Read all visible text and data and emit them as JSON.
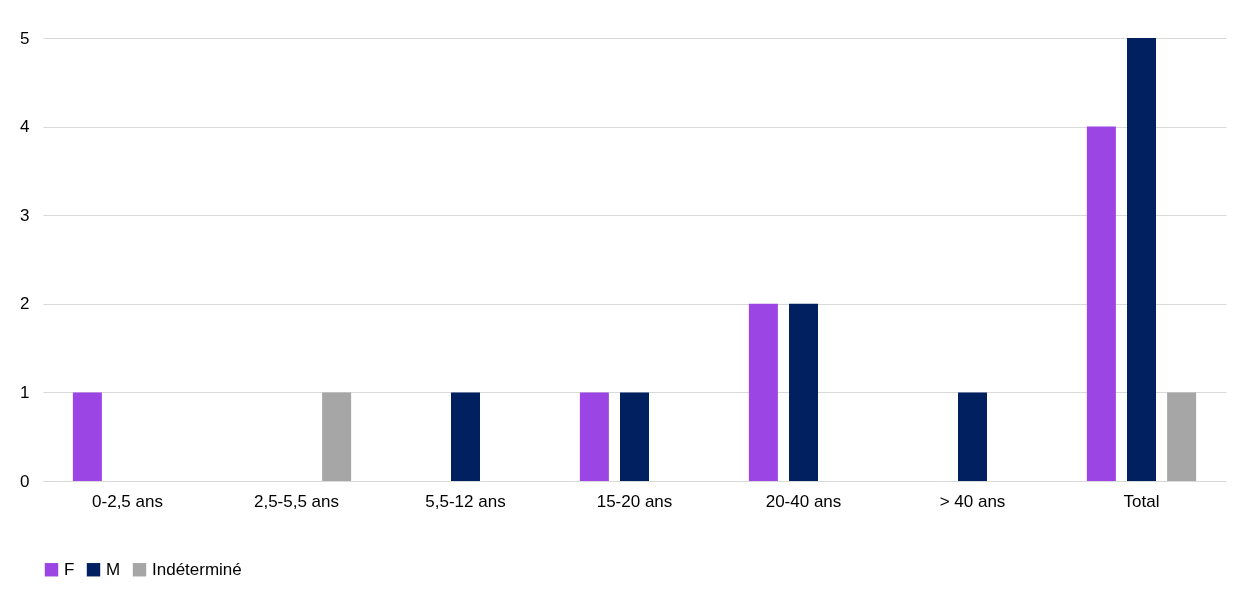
{
  "chart_data": {
    "type": "bar",
    "categories": [
      "0-2,5 ans",
      "2,5-5,5 ans",
      "5,5-12 ans",
      "15-20 ans",
      "20-40 ans",
      "> 40 ans",
      "Total"
    ],
    "series": [
      {
        "name": "F",
        "color": "#9b45e4",
        "values": [
          1,
          0,
          0,
          1,
          2,
          0,
          4
        ]
      },
      {
        "name": "M",
        "color": "#002060",
        "values": [
          0,
          0,
          1,
          1,
          2,
          1,
          5
        ]
      },
      {
        "name": "Indéterminé",
        "color": "#a6a6a6",
        "values": [
          0,
          1,
          0,
          0,
          0,
          0,
          1
        ]
      }
    ],
    "ylim": [
      0,
      5
    ],
    "yticks": [
      0,
      1,
      2,
      3,
      4,
      5
    ],
    "grid": "y",
    "legend": "bottom"
  }
}
